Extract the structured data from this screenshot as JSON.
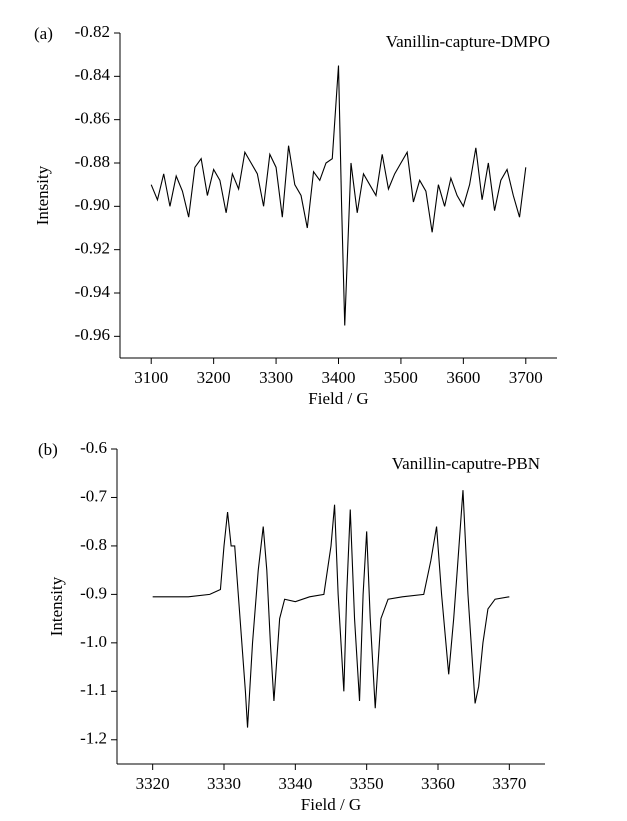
{
  "chart_data": [
    {
      "type": "line",
      "panel_label": "(a)",
      "annotation": "Vanillin-capture-DMPO",
      "xlabel": "Field / G",
      "ylabel": "Intensity",
      "color": "#000000",
      "xlim": [
        3050,
        3750
      ],
      "xticks": [
        3100,
        3200,
        3300,
        3400,
        3500,
        3600,
        3700
      ],
      "ylim": [
        -0.97,
        -0.82
      ],
      "yticks": [
        -0.82,
        -0.84,
        -0.86,
        -0.88,
        {
          "value": -0.9,
          "label": "-0.90"
        },
        -0.92,
        -0.94,
        -0.96
      ],
      "x": [
        3100,
        3110,
        3120,
        3130,
        3140,
        3150,
        3160,
        3170,
        3180,
        3190,
        3200,
        3210,
        3220,
        3230,
        3240,
        3250,
        3260,
        3270,
        3280,
        3290,
        3300,
        3310,
        3320,
        3330,
        3340,
        3350,
        3360,
        3370,
        3380,
        3390,
        3400,
        3405,
        3410,
        3420,
        3430,
        3440,
        3450,
        3460,
        3470,
        3480,
        3490,
        3500,
        3510,
        3520,
        3530,
        3540,
        3550,
        3560,
        3570,
        3580,
        3590,
        3600,
        3610,
        3620,
        3630,
        3640,
        3650,
        3660,
        3670,
        3680,
        3690,
        3700
      ],
      "values": [
        -0.89,
        -0.897,
        -0.885,
        -0.9,
        -0.886,
        -0.893,
        -0.905,
        -0.882,
        -0.878,
        -0.895,
        -0.883,
        -0.888,
        -0.903,
        -0.885,
        -0.892,
        -0.875,
        -0.88,
        -0.885,
        -0.9,
        -0.876,
        -0.882,
        -0.905,
        -0.872,
        -0.89,
        -0.895,
        -0.91,
        -0.884,
        -0.888,
        -0.88,
        -0.878,
        -0.835,
        -0.9,
        -0.955,
        -0.88,
        -0.903,
        -0.885,
        -0.89,
        -0.895,
        -0.876,
        -0.892,
        -0.885,
        -0.88,
        -0.875,
        -0.898,
        -0.888,
        -0.893,
        -0.912,
        -0.89,
        -0.9,
        -0.887,
        -0.895,
        -0.9,
        -0.89,
        -0.873,
        -0.897,
        -0.88,
        -0.902,
        -0.888,
        -0.883,
        -0.895,
        -0.905,
        -0.882
      ]
    },
    {
      "type": "line",
      "panel_label": "(b)",
      "annotation": "Vanillin-caputre-PBN",
      "xlabel": "Field / G",
      "ylabel": "Intensity",
      "color": "#000000",
      "xlim": [
        3315,
        3375
      ],
      "xticks": [
        3320,
        3330,
        3340,
        3350,
        3360,
        3370
      ],
      "ylim": [
        -1.25,
        -0.6
      ],
      "yticks": [
        -0.6,
        -0.7,
        -0.8,
        -0.9,
        {
          "value": -1.0,
          "label": "-1.0"
        },
        -1.1,
        -1.2
      ],
      "x": [
        3320,
        3325,
        3328,
        3329.5,
        3330,
        3330.5,
        3331,
        3331.5,
        3332,
        3333,
        3333.3,
        3334,
        3334.8,
        3335.5,
        3336,
        3336.5,
        3337,
        3337.8,
        3338.5,
        3340,
        3342,
        3344,
        3345,
        3345.5,
        3346,
        3346.8,
        3347.2,
        3347.7,
        3348.3,
        3349,
        3349.5,
        3350,
        3350.5,
        3351.2,
        3352,
        3353,
        3355,
        3358,
        3359,
        3359.8,
        3360.5,
        3361.5,
        3362.2,
        3362.7,
        3363.5,
        3364.2,
        3365.2,
        3365.7,
        3366.3,
        3367,
        3368,
        3370
      ],
      "values": [
        -0.905,
        -0.905,
        -0.9,
        -0.89,
        -0.8,
        -0.73,
        -0.8,
        -0.8,
        -0.9,
        -1.1,
        -1.175,
        -1.0,
        -0.85,
        -0.76,
        -0.85,
        -1.0,
        -1.12,
        -0.95,
        -0.91,
        -0.915,
        -0.905,
        -0.9,
        -0.8,
        -0.715,
        -0.9,
        -1.1,
        -0.9,
        -0.725,
        -0.95,
        -1.12,
        -0.9,
        -0.77,
        -0.95,
        -1.135,
        -0.95,
        -0.91,
        -0.905,
        -0.9,
        -0.83,
        -0.76,
        -0.9,
        -1.065,
        -0.95,
        -0.85,
        -0.685,
        -0.9,
        -1.125,
        -1.09,
        -1.0,
        -0.93,
        -0.91,
        -0.905
      ]
    }
  ]
}
